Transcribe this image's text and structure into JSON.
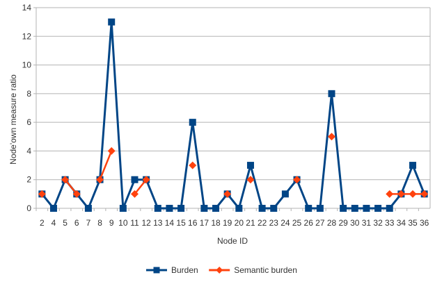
{
  "chart_data": {
    "type": "line",
    "title": "",
    "xlabel": "Node ID",
    "ylabel": "Node'own measure ratio",
    "ylim": [
      0,
      14
    ],
    "yticks": [
      0,
      2,
      4,
      6,
      8,
      10,
      12,
      14
    ],
    "grid": true,
    "legend_position": "bottom",
    "categories": [
      "2",
      "4",
      "5",
      "6",
      "7",
      "8",
      "9",
      "10",
      "11",
      "12",
      "13",
      "14",
      "15",
      "16",
      "17",
      "18",
      "19",
      "20",
      "21",
      "22",
      "23",
      "24",
      "25",
      "26",
      "27",
      "28",
      "29",
      "30",
      "31",
      "32",
      "33",
      "34",
      "35",
      "36"
    ],
    "series": [
      {
        "name": "Burden",
        "color": "#004586",
        "marker": "square",
        "values": [
          1,
          0,
          2,
          1,
          0,
          2,
          13,
          0,
          2,
          2,
          0,
          0,
          0,
          6,
          0,
          0,
          1,
          0,
          3,
          0,
          0,
          1,
          2,
          0,
          0,
          8,
          0,
          0,
          0,
          0,
          0,
          1,
          3,
          1
        ]
      },
      {
        "name": "Semantic burden",
        "color": "#ff420e",
        "marker": "diamond",
        "values": [
          1,
          null,
          2,
          1,
          null,
          2,
          4,
          null,
          1,
          2,
          null,
          null,
          null,
          3,
          null,
          null,
          1,
          null,
          2,
          null,
          null,
          null,
          2,
          null,
          null,
          5,
          null,
          null,
          null,
          null,
          1,
          1,
          1,
          1
        ]
      }
    ]
  }
}
